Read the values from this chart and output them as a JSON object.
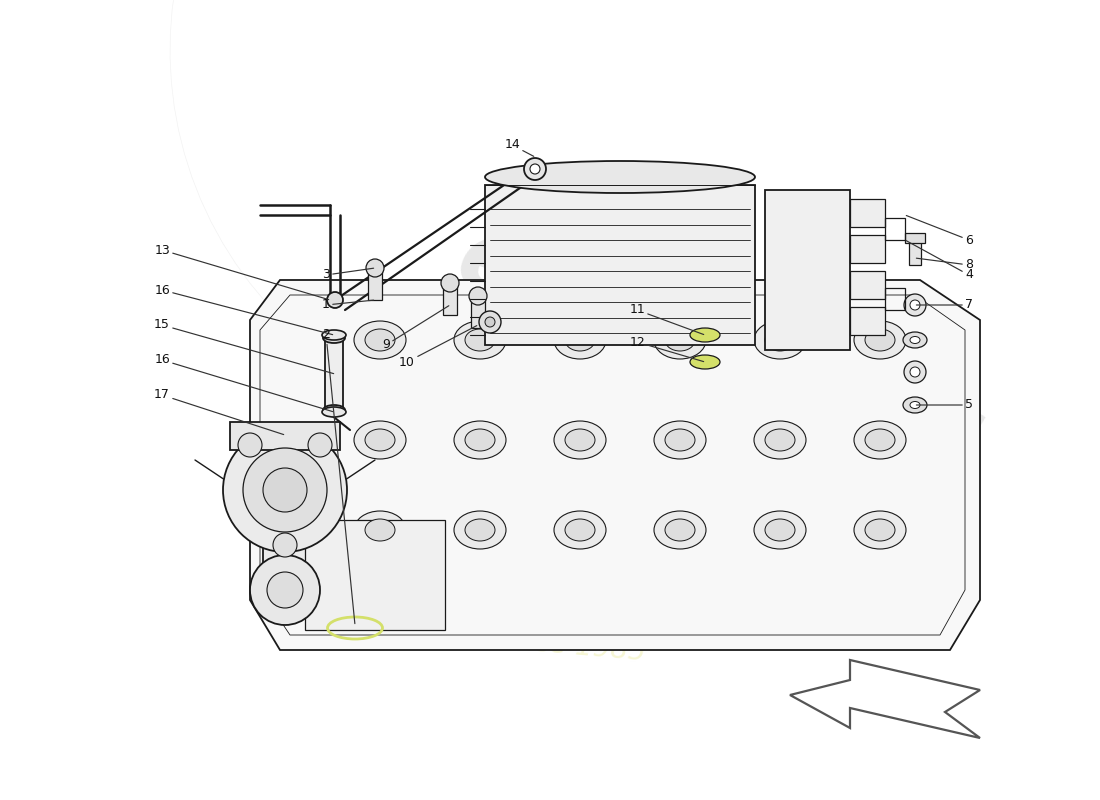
{
  "background_color": "#ffffff",
  "line_color": "#1a1a1a",
  "label_color": "#111111",
  "watermark_color1": "#cccccc",
  "watermark_color2": "#f5f5d0",
  "highlight_color": "#d4e06a",
  "arrow_ec": "#555555"
}
